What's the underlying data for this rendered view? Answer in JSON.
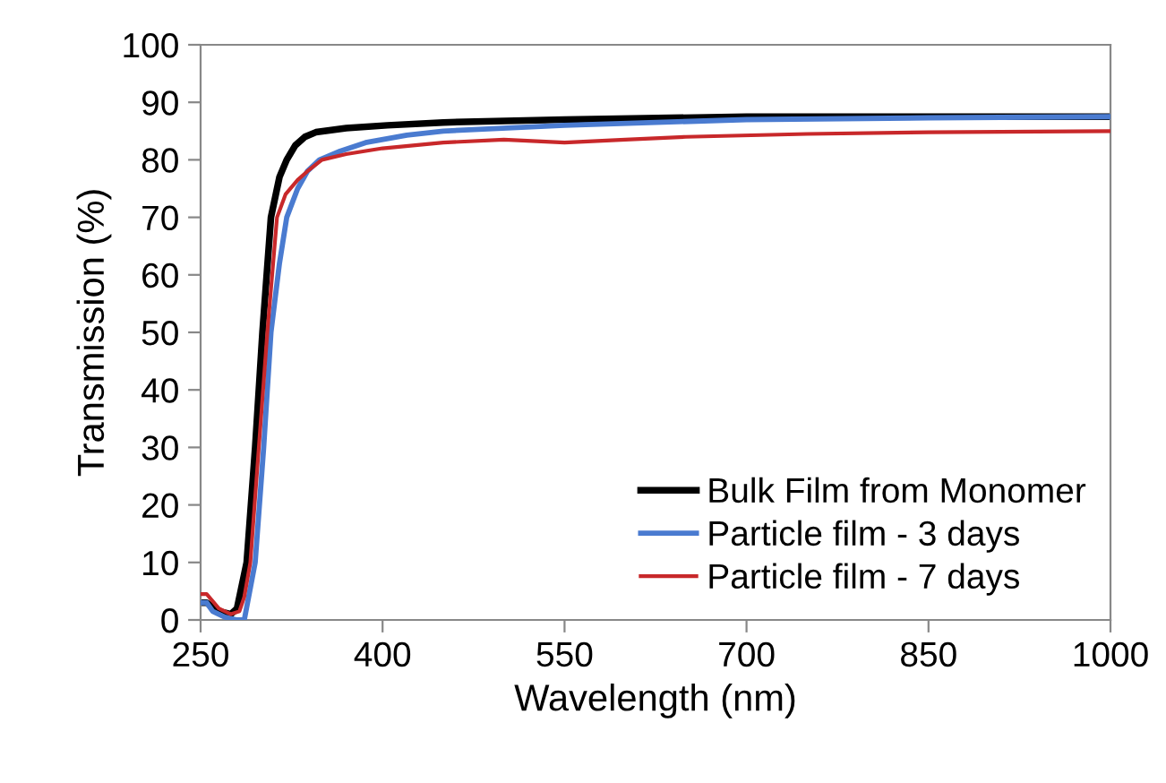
{
  "chart_data": {
    "type": "line",
    "xlabel": "Wavelength (nm)",
    "ylabel": "Transmission (%)",
    "xlim": [
      250,
      1000
    ],
    "xticks": [
      250,
      400,
      550,
      700,
      850,
      1000
    ],
    "ylim": [
      0,
      100
    ],
    "yticks": [
      0,
      10,
      20,
      30,
      40,
      50,
      60,
      70,
      80,
      90,
      100
    ],
    "grid": false,
    "legend": "bottom right",
    "marker": "none",
    "line_style": "solid",
    "series": [
      {
        "name": "Bulk Film from Monomer",
        "color": "#000000",
        "x": [
          250,
          255,
          265,
          275,
          280,
          288,
          295,
          301,
          308,
          315,
          321,
          328,
          336,
          345,
          352,
          370,
          404,
          450,
          550,
          700,
          850,
          1000
        ],
        "values": [
          3,
          3,
          1.5,
          1,
          2,
          10,
          30,
          50,
          70,
          77,
          80,
          82.5,
          84,
          84.8,
          85,
          85.5,
          86,
          86.5,
          87,
          87.5,
          87.5,
          87.5
        ]
      },
      {
        "name": "Particle film - 3 days",
        "color": "#4a7bd0",
        "x": [
          250,
          255,
          260,
          270,
          280,
          286,
          295,
          302,
          308,
          315,
          321,
          330,
          338,
          348,
          365,
          386,
          420,
          450,
          550,
          700,
          850,
          1000
        ],
        "values": [
          3,
          3,
          1.5,
          0.5,
          0,
          0,
          10,
          30,
          50,
          62,
          70,
          75,
          78,
          80,
          81.5,
          83,
          84.3,
          85,
          86,
          87,
          87.3,
          87.5
        ]
      },
      {
        "name": "Particle film - 7 days",
        "color": "#c8282a",
        "x": [
          250,
          255,
          265,
          275,
          282,
          286,
          291,
          298,
          305,
          313,
          320,
          330,
          338,
          350,
          370,
          400,
          450,
          500,
          550,
          600,
          650,
          750,
          850,
          1000
        ],
        "values": [
          4.5,
          4.5,
          2,
          1,
          1.5,
          4,
          10,
          30,
          50,
          70,
          74,
          76.5,
          78,
          80,
          81,
          82,
          83,
          83.5,
          83,
          83.5,
          84,
          84.5,
          84.8,
          85
        ]
      }
    ]
  }
}
